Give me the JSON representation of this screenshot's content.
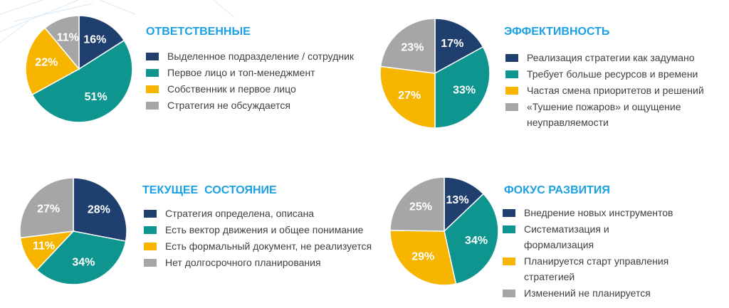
{
  "chart_data": [
    {
      "type": "pie",
      "title": "ОТВЕТСТВЕННЫЕ",
      "categories": [
        "Выделенное подразделение / сотрудник",
        "Первое лицо и топ-менеджмент",
        "Собственник и первое лицо",
        "Стратегия не обсуждается"
      ],
      "values": [
        16,
        51,
        22,
        11
      ],
      "value_labels": [
        "16%",
        "51%",
        "22%",
        "11%"
      ],
      "colors": [
        "#1f3f6e",
        "#0e958f",
        "#f7b500",
        "#a6a6a6"
      ]
    },
    {
      "type": "pie",
      "title": "ЭФФЕКТИВНОСТЬ",
      "categories": [
        "Реализация стратегии как задумано",
        "Требует больше ресурсов и времени",
        "Частая смена приоритетов и решений",
        "«Тушение пожаров» и ощущение неуправляемости"
      ],
      "values": [
        17,
        33,
        27,
        23
      ],
      "value_labels": [
        "17%",
        "33%",
        "27%",
        "23%"
      ],
      "colors": [
        "#1f3f6e",
        "#0e958f",
        "#f7b500",
        "#a6a6a6"
      ]
    },
    {
      "type": "pie",
      "title": "ТЕКУЩЕЕ  СОСТОЯНИЕ",
      "categories": [
        "Стратегия определена, описана",
        "Есть вектор движения и общее понимание",
        "Есть формальный документ, не реализуется",
        "Нет долгосрочного планирования"
      ],
      "values": [
        28,
        34,
        11,
        27
      ],
      "value_labels": [
        "28%",
        "34%",
        "11%",
        "27%"
      ],
      "colors": [
        "#1f3f6e",
        "#0e958f",
        "#f7b500",
        "#a6a6a6"
      ]
    },
    {
      "type": "pie",
      "title": "ФОКУС РАЗВИТИЯ",
      "categories": [
        "Внедрение новых инструментов",
        "Систематизация и формализация",
        "Планируется старт управления стратегией",
        "Изменений не планируется"
      ],
      "values": [
        13,
        34,
        29,
        25
      ],
      "value_labels": [
        "13%",
        "34%",
        "29%",
        "25%"
      ],
      "colors": [
        "#1f3f6e",
        "#0e958f",
        "#f7b500",
        "#a6a6a6"
      ]
    }
  ]
}
